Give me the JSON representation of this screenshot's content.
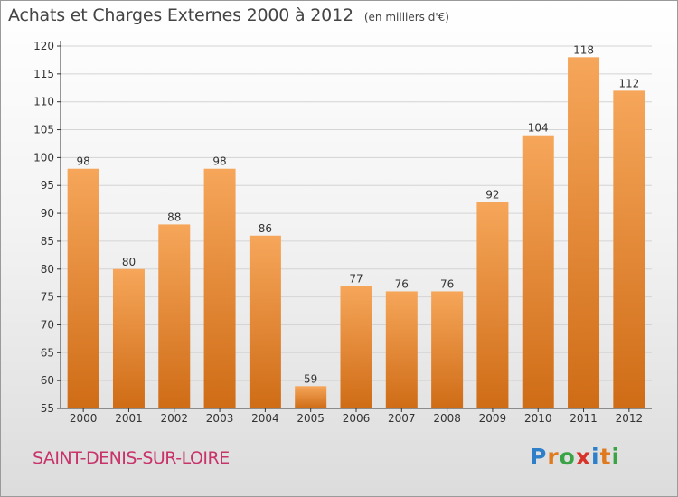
{
  "header": {
    "title": "Achats et Charges Externes 2000 à 2012",
    "unit": "(en milliers d'€)"
  },
  "footer": {
    "commune": "SAINT-DENIS-SUR-LOIRE",
    "logo_letters": [
      "P",
      "r",
      "o",
      "x",
      "i",
      "t",
      "i"
    ],
    "logo_colors": [
      "#2e7fc9",
      "#e07a1f",
      "#3aa346",
      "#d8332a",
      "#2e7fc9",
      "#e07a1f",
      "#3aa346"
    ]
  },
  "colors": {
    "bar_top": "#f6a65a",
    "bar_bottom": "#cf6c16",
    "axis": "#333333",
    "grid": "#d4d4d4",
    "commune": "#c8336a"
  },
  "chart_data": {
    "type": "bar",
    "title": "Achats et Charges Externes 2000 à 2012",
    "subtitle": "(en milliers d'€)",
    "categories": [
      "2000",
      "2001",
      "2002",
      "2003",
      "2004",
      "2005",
      "2006",
      "2007",
      "2008",
      "2009",
      "2010",
      "2011",
      "2012"
    ],
    "values": [
      98,
      80,
      88,
      98,
      86,
      59,
      77,
      76,
      76,
      92,
      104,
      118,
      112
    ],
    "ylim": [
      55,
      120
    ],
    "yticks": [
      55,
      60,
      65,
      70,
      75,
      80,
      85,
      90,
      95,
      100,
      105,
      110,
      115,
      120
    ],
    "grid": true,
    "data_labels": true
  }
}
